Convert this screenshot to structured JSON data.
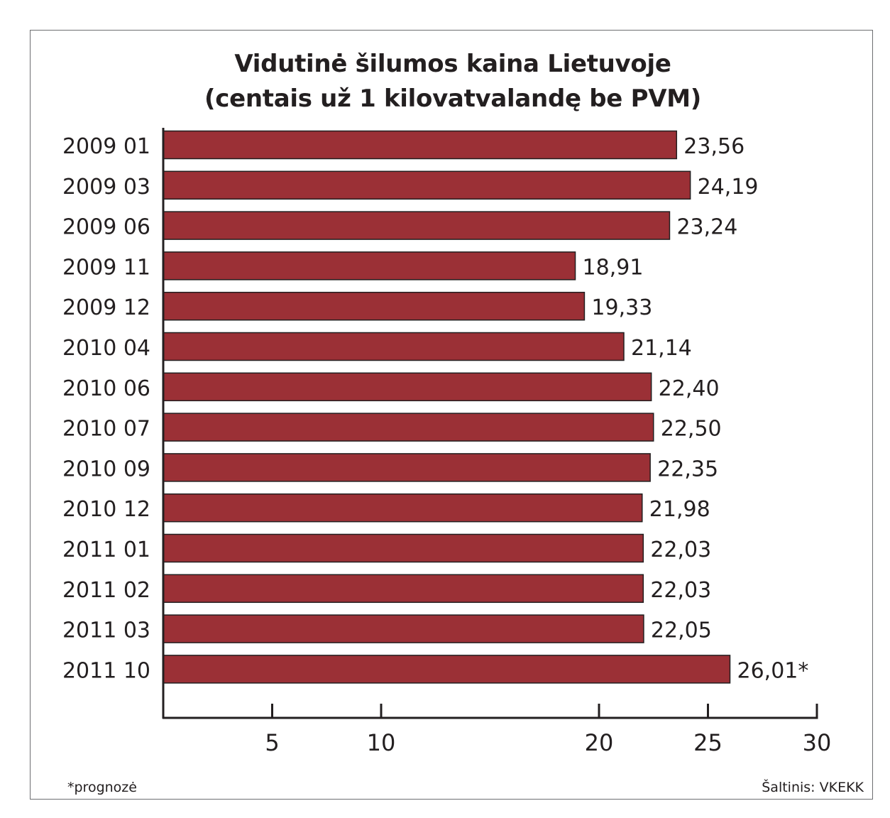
{
  "chart_data": {
    "type": "bar",
    "orientation": "horizontal",
    "title_line1": "Vidutinė šilumos kaina Lietuvoje",
    "title_line2": "(centais už 1 kilovatvalandę be PVM)",
    "categories": [
      "2009 01",
      "2009 03",
      "2009 06",
      "2009 11",
      "2009 12",
      "2010 04",
      "2010 06",
      "2010 07",
      "2010 09",
      "2010 12",
      "2011 01",
      "2011 02",
      "2011 03",
      "2011 10"
    ],
    "values": [
      23.56,
      24.19,
      23.24,
      18.91,
      19.33,
      21.14,
      22.4,
      22.5,
      22.35,
      21.98,
      22.03,
      22.03,
      22.05,
      26.01
    ],
    "value_labels": [
      "23,56",
      "24,19",
      "23,24",
      "18,91",
      "19,33",
      "21,14",
      "22,40",
      "22,50",
      "22,35",
      "21,98",
      "22,03",
      "22,03",
      "22,05",
      "26,01*"
    ],
    "xlim": [
      0,
      30
    ],
    "xticks": [
      5,
      10,
      20,
      25,
      30
    ],
    "xtick_labels": [
      "5",
      "10",
      "20",
      "25",
      "30"
    ],
    "grid": false,
    "bar_color": "#9b3036"
  },
  "footnote": "*prognozė",
  "source": "Šaltinis: VKEKK"
}
